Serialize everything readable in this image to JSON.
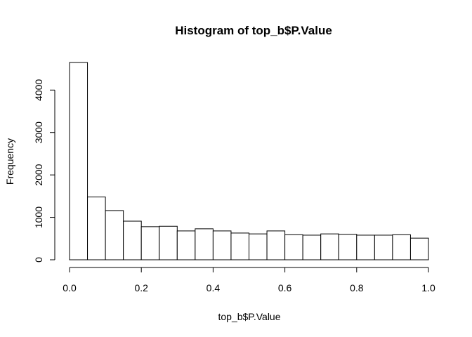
{
  "chart_data": {
    "type": "bar",
    "title": "Histogram of top_b$P.Value",
    "xlabel": "top_b$P.Value",
    "ylabel": "Frequency",
    "bin_width": 0.05,
    "bin_starts": [
      0.0,
      0.05,
      0.1,
      0.15,
      0.2,
      0.25,
      0.3,
      0.35,
      0.4,
      0.45,
      0.5,
      0.55,
      0.6,
      0.65,
      0.7,
      0.75,
      0.8,
      0.85,
      0.9,
      0.95
    ],
    "values": [
      4650,
      1480,
      1160,
      910,
      780,
      790,
      680,
      730,
      680,
      630,
      610,
      680,
      590,
      580,
      610,
      600,
      580,
      580,
      590,
      510
    ],
    "xlim": [
      0,
      1
    ],
    "ylim": [
      0,
      4650
    ],
    "x_ticks": [
      0.0,
      0.2,
      0.4,
      0.6,
      0.8,
      1.0
    ],
    "x_tick_labels": [
      "0.0",
      "0.2",
      "0.4",
      "0.6",
      "0.8",
      "1.0"
    ],
    "y_ticks": [
      0,
      1000,
      2000,
      3000,
      4000
    ],
    "y_tick_labels": [
      "0",
      "1000",
      "2000",
      "3000",
      "4000"
    ],
    "grid": false,
    "colors": {
      "bar_fill": "#ffffff",
      "bar_stroke": "#000000"
    }
  }
}
